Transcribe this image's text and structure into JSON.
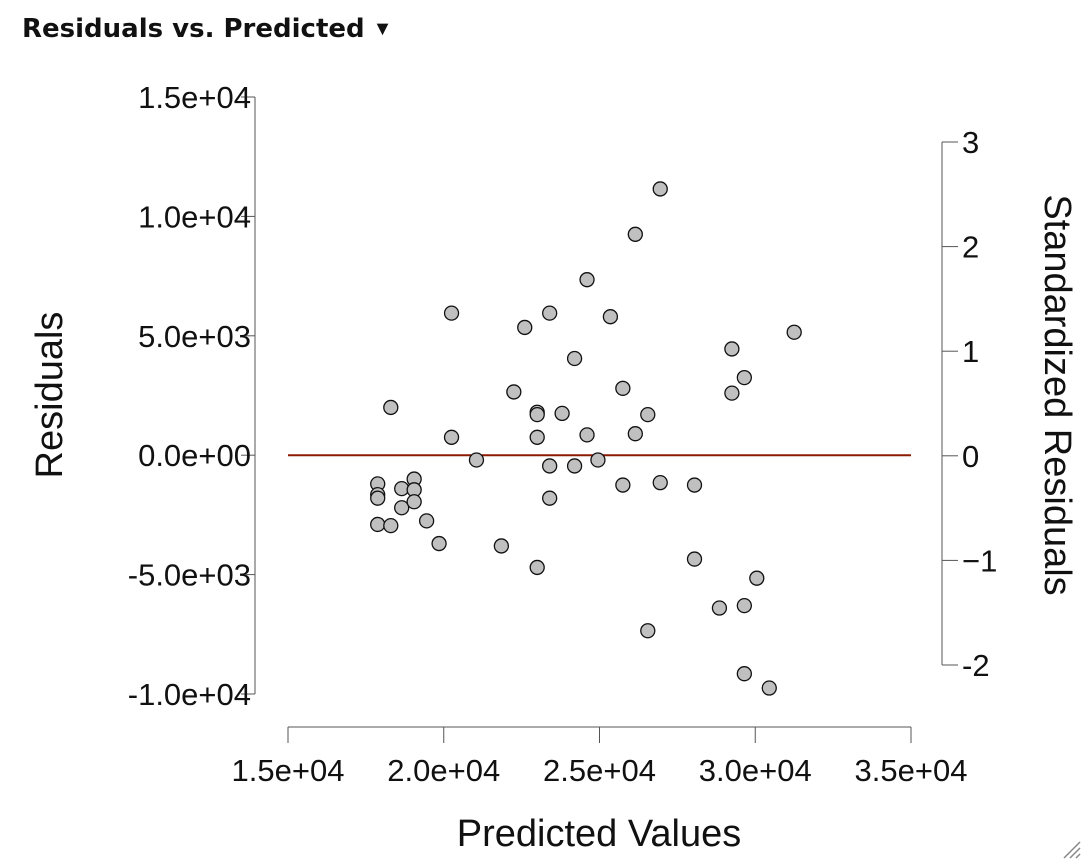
{
  "panel": {
    "title": "Residuals vs. Predicted",
    "menu_icon": "caret-down-icon"
  },
  "chart_data": {
    "type": "scatter",
    "xlabel": "Predicted Values",
    "ylabel": "Residuals",
    "y2label": "Standardized Residuals",
    "xlim": [
      15000,
      35000
    ],
    "ylim": [
      -10000,
      15000
    ],
    "y2lim": [
      -2,
      3
    ],
    "x_ticks": [
      15000,
      20000,
      25000,
      30000,
      35000
    ],
    "x_tick_labels": [
      "1.5e+04",
      "2.0e+04",
      "2.5e+04",
      "3.0e+04",
      "3.5e+04"
    ],
    "y_ticks": [
      -10000,
      -5000,
      0,
      5000,
      10000,
      15000
    ],
    "y_tick_labels": [
      "-1.0e+04",
      "-5.0e+03",
      "0.0e+00",
      "5.0e+03",
      "1.0e+04",
      "1.5e+04"
    ],
    "y2_ticks": [
      -2,
      -1,
      0,
      1,
      2,
      3
    ],
    "y2_tick_labels": [
      "-2",
      "−1",
      "0",
      "1",
      "2",
      "3"
    ],
    "reference_line": {
      "y": 0,
      "color": "#8b1a00"
    },
    "point_color": "#c0c0c0",
    "points": [
      {
        "x": 17880,
        "y": -1200
      },
      {
        "x": 17880,
        "y": -1650
      },
      {
        "x": 17880,
        "y": -1800
      },
      {
        "x": 17880,
        "y": -2900
      },
      {
        "x": 18300,
        "y": 2000
      },
      {
        "x": 18300,
        "y": -2950
      },
      {
        "x": 18650,
        "y": -1400
      },
      {
        "x": 18650,
        "y": -2200
      },
      {
        "x": 19050,
        "y": -1000
      },
      {
        "x": 19050,
        "y": -1450
      },
      {
        "x": 19050,
        "y": -1950
      },
      {
        "x": 19450,
        "y": -2750
      },
      {
        "x": 19850,
        "y": -3700
      },
      {
        "x": 20250,
        "y": 5950
      },
      {
        "x": 20250,
        "y": 750
      },
      {
        "x": 21050,
        "y": -200
      },
      {
        "x": 21850,
        "y": -3800
      },
      {
        "x": 22250,
        "y": 2650
      },
      {
        "x": 22600,
        "y": 5350
      },
      {
        "x": 23000,
        "y": 1800
      },
      {
        "x": 23000,
        "y": 1700
      },
      {
        "x": 23000,
        "y": 750
      },
      {
        "x": 23000,
        "y": -4700
      },
      {
        "x": 23400,
        "y": 5950
      },
      {
        "x": 23400,
        "y": -450
      },
      {
        "x": 23400,
        "y": -1800
      },
      {
        "x": 23800,
        "y": 1750
      },
      {
        "x": 24200,
        "y": 4050
      },
      {
        "x": 24200,
        "y": -450
      },
      {
        "x": 24600,
        "y": 7350
      },
      {
        "x": 24600,
        "y": 850
      },
      {
        "x": 24950,
        "y": -200
      },
      {
        "x": 25350,
        "y": 5800
      },
      {
        "x": 25750,
        "y": 2800
      },
      {
        "x": 25750,
        "y": -1250
      },
      {
        "x": 26150,
        "y": 9250
      },
      {
        "x": 26150,
        "y": 900
      },
      {
        "x": 26550,
        "y": 1700
      },
      {
        "x": 26550,
        "y": -7350
      },
      {
        "x": 26950,
        "y": 11150
      },
      {
        "x": 26950,
        "y": -1150
      },
      {
        "x": 28050,
        "y": -1250
      },
      {
        "x": 28050,
        "y": -4350
      },
      {
        "x": 28850,
        "y": -6400
      },
      {
        "x": 29250,
        "y": 4450
      },
      {
        "x": 29250,
        "y": 2600
      },
      {
        "x": 29650,
        "y": 3250
      },
      {
        "x": 29650,
        "y": -6300
      },
      {
        "x": 29650,
        "y": -9150
      },
      {
        "x": 30050,
        "y": -5150
      },
      {
        "x": 30450,
        "y": -9750
      },
      {
        "x": 31250,
        "y": 5150
      }
    ]
  }
}
